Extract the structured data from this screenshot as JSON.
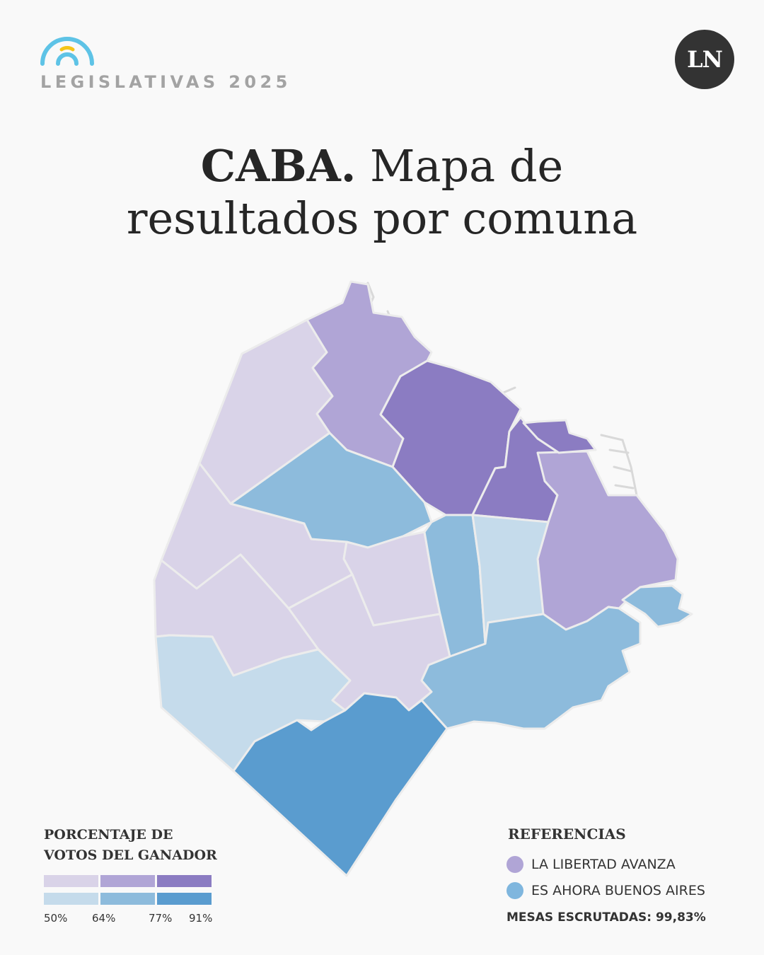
{
  "header": {
    "brand": "LEGISLATIVAS 2025",
    "publisher_logo": "LN",
    "title_bold": "CABA.",
    "title_rest_line1": "Mapa de",
    "title_line2": "resultados por comuna"
  },
  "colors": {
    "background": "#f9f9f9",
    "lla_50": "#d9d3e8",
    "lla_64": "#b0a5d6",
    "lla_77": "#8b7cc2",
    "eab_50": "#c5dbeb",
    "eab_64": "#8dbbdc",
    "eab_77": "#5a9ccf",
    "logo_blue": "#5ec3e6",
    "logo_yellow": "#f5c518"
  },
  "map": {
    "description_icon": "choropleth-map-caba-comunas",
    "comunas": [
      {
        "party": "La Libertad Avanza",
        "bin": "50-64"
      },
      {
        "party": "La Libertad Avanza",
        "bin": "64-77"
      },
      {
        "party": "La Libertad Avanza",
        "bin": "77-91"
      },
      {
        "party": "Es Ahora Buenos Aires",
        "bin": "50-64"
      },
      {
        "party": "Es Ahora Buenos Aires",
        "bin": "64-77"
      },
      {
        "party": "Es Ahora Buenos Aires",
        "bin": "77-91"
      }
    ]
  },
  "legend": {
    "title_line1": "PORCENTAJE DE",
    "title_line2": "VOTOS DEL GANADOR",
    "ticks": [
      "50%",
      "64%",
      "77%",
      "91%"
    ]
  },
  "references": {
    "title": "REFERENCIAS",
    "items": [
      {
        "label": "LA LIBERTAD AVANZA",
        "color": "#b0a5d6"
      },
      {
        "label": "ES AHORA BUENOS AIRES",
        "color": "#7fb6de"
      }
    ],
    "mesas": "MESAS ESCRUTADAS: 99,83%"
  }
}
